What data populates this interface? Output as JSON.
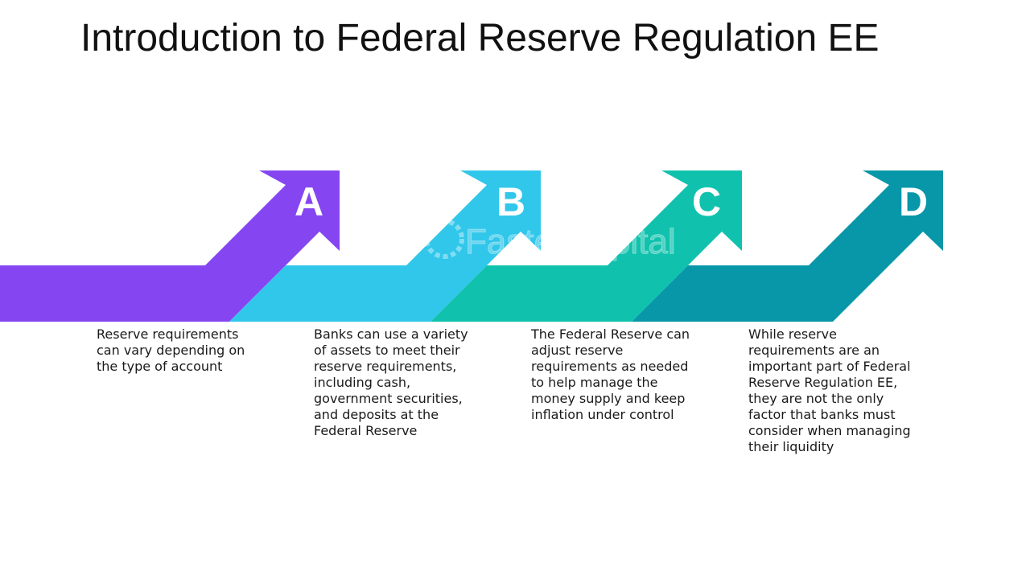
{
  "title": "Introduction to Federal Reserve Regulation EE",
  "watermark": "FasterCapital",
  "steps": [
    {
      "letter": "A",
      "color": "#8546f2",
      "text": "Reserve requirements can vary depending on the type of account"
    },
    {
      "letter": "B",
      "color": "#31c7ea",
      "text": "Banks can use a variety of assets to meet their reserve requirements, including cash, government securities, and deposits at the Federal Reserve"
    },
    {
      "letter": "C",
      "color": "#10c2ad",
      "text": "The Federal Reserve can adjust reserve requirements as needed to help manage the money supply and keep inflation under control"
    },
    {
      "letter": "D",
      "color": "#0797a8",
      "text": "While reserve requirements are an important part of Federal Reserve Regulation EE, they are not the only factor that banks must consider when managing their liquidity"
    }
  ]
}
